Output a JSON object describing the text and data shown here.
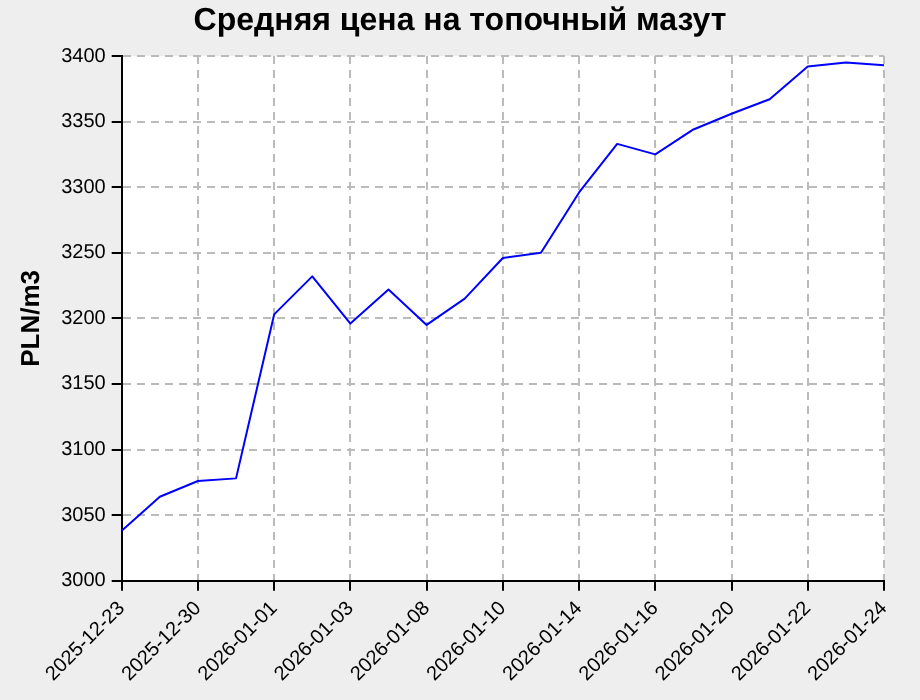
{
  "chart_data": {
    "type": "line",
    "title": "Средняя цена на топочный мазут",
    "ylabel": "PLN/m3",
    "categories": [
      "2025-12-23",
      null,
      "2025-12-30",
      null,
      "2026-01-01",
      null,
      "2026-01-03",
      null,
      "2026-01-08",
      null,
      "2026-01-10",
      null,
      "2026-01-14",
      null,
      "2026-01-16",
      null,
      "2026-01-20",
      null,
      "2026-01-22",
      null,
      "2026-01-24"
    ],
    "series": [
      {
        "color": "#0000ff",
        "values": [
          3038,
          3064,
          3076,
          3078,
          3203,
          3232,
          3196,
          3222,
          3195,
          3215,
          3246,
          3250,
          3296,
          3333,
          3325,
          3344,
          3356,
          3367,
          3392,
          3395,
          3393
        ]
      }
    ],
    "ylim": [
      3000,
      3400
    ],
    "yticks": [
      3000,
      3050,
      3100,
      3150,
      3200,
      3250,
      3300,
      3350,
      3400
    ],
    "grid": true,
    "legend": false,
    "marker": "none",
    "line_style": "solid"
  }
}
